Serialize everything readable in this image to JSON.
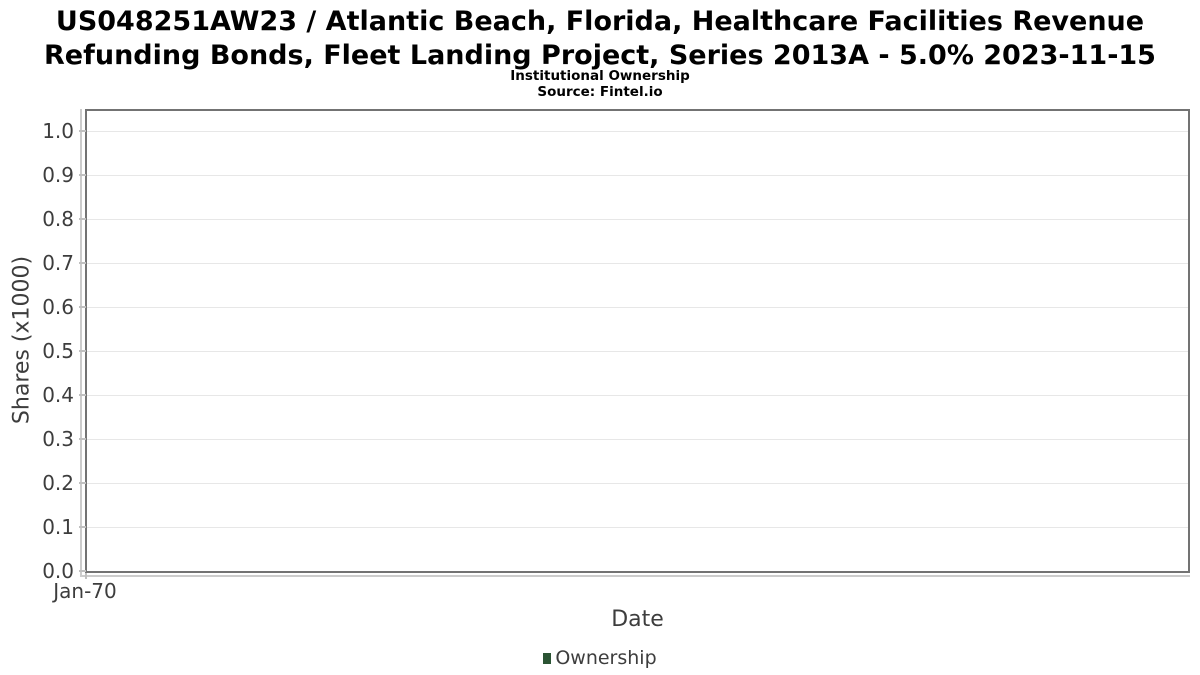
{
  "chart_data": {
    "type": "line",
    "title": "US048251AW23 / Atlantic Beach, Florida, Healthcare Facilities Revenue Refunding Bonds, Fleet Landing Project, Series 2013A - 5.0% 2023-11-15",
    "subtitle": "Institutional Ownership",
    "source": "Source: Fintel.io",
    "xlabel": "Date",
    "ylabel": "Shares (x1000)",
    "x_ticks": [
      "Jan-70"
    ],
    "y_ticks": [
      0,
      0.1,
      0.2,
      0.3,
      0.4,
      0.5,
      0.6,
      0.7,
      0.8,
      0.9,
      1.0
    ],
    "y_tick_decimals": 1,
    "ylim": [
      0,
      1.05
    ],
    "grid": "horizontal-only",
    "legend_position": "bottom-center",
    "series": [
      {
        "name": "Ownership",
        "color": "#2b5434",
        "values": []
      }
    ]
  },
  "colors": {
    "plot_border": "#737373",
    "axis_line": "#cccccc",
    "gridline": "#e7e7e7",
    "tick_text": "#3d3d3d",
    "title_text": "#000000"
  }
}
